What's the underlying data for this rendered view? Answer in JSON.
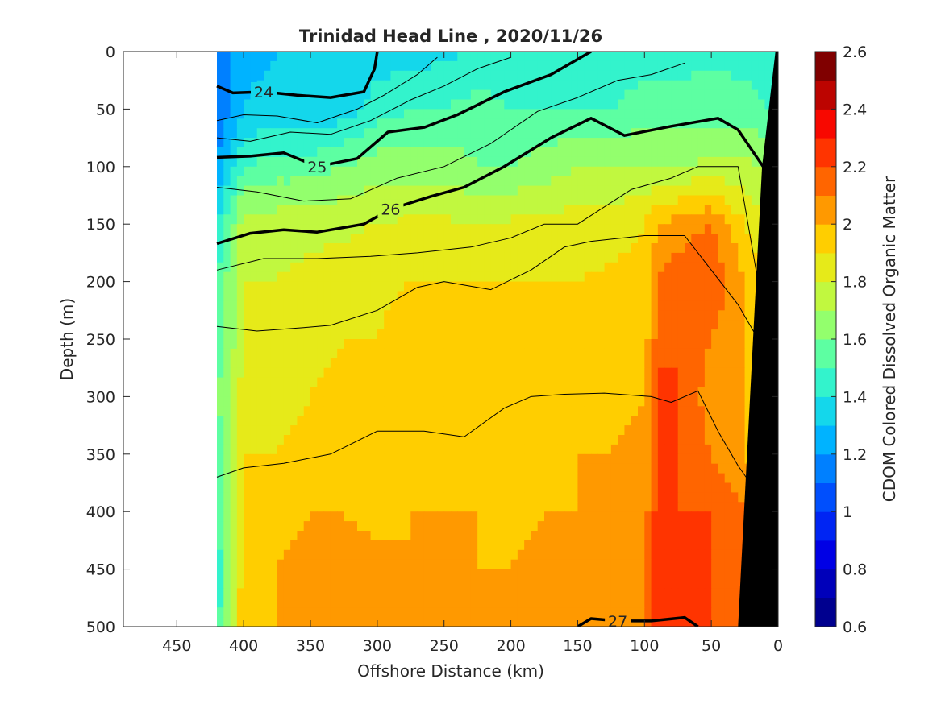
{
  "chart_data": {
    "type": "heatmap",
    "title": "Trinidad Head Line , 2020/11/26",
    "xlabel": "Offshore Distance (km)",
    "ylabel": "Depth (m)",
    "colorbar_label": "CDOM Colored Dissolved Organic Matter",
    "x_reversed": true,
    "xlim": [
      0,
      490
    ],
    "ylim": [
      0,
      500
    ],
    "y_reversed": true,
    "x_ticks": [
      450,
      400,
      350,
      300,
      250,
      200,
      150,
      100,
      50,
      0
    ],
    "y_ticks": [
      0,
      50,
      100,
      150,
      200,
      250,
      300,
      350,
      400,
      450,
      500
    ],
    "color_range": [
      0.6,
      2.6
    ],
    "colorbar_ticks": [
      2.6,
      2.4,
      2.2,
      2,
      1.8,
      1.6,
      1.4,
      1.2,
      1,
      0.8,
      0.6
    ],
    "colormap": [
      "#00008f",
      "#0000ea",
      "#0058ff",
      "#00c4ff",
      "#40ffbf",
      "#b0ff50",
      "#ffe000",
      "#ff7000",
      "#ff0800",
      "#800000"
    ],
    "data_extent_km": [
      0,
      420
    ],
    "grid_x_km": [
      420,
      400,
      375,
      350,
      325,
      300,
      275,
      250,
      225,
      200,
      175,
      150,
      125,
      100,
      90,
      75,
      50,
      25,
      5
    ],
    "grid_depth_m": [
      0,
      50,
      100,
      150,
      200,
      250,
      300,
      350,
      400,
      450,
      500
    ],
    "cdom": [
      [
        1.15,
        1.25,
        1.3,
        1.3,
        1.3,
        1.35,
        1.35,
        1.38,
        1.4,
        1.4,
        1.4,
        1.4,
        1.42,
        1.45,
        1.45,
        1.45,
        1.48,
        1.45,
        1.4
      ],
      [
        1.1,
        1.3,
        1.35,
        1.3,
        1.35,
        1.45,
        1.5,
        1.5,
        1.55,
        1.5,
        1.5,
        1.5,
        1.5,
        1.55,
        1.55,
        1.55,
        1.55,
        1.55,
        1.5
      ],
      [
        1.2,
        1.5,
        1.55,
        1.55,
        1.6,
        1.65,
        1.65,
        1.65,
        1.6,
        1.6,
        1.65,
        1.7,
        1.7,
        1.7,
        1.7,
        1.7,
        1.72,
        1.72,
        1.7
      ],
      [
        1.4,
        1.75,
        1.75,
        1.75,
        1.78,
        1.8,
        1.82,
        1.82,
        1.8,
        1.82,
        1.82,
        1.85,
        1.85,
        1.9,
        2.0,
        2.05,
        2.1,
        1.9,
        1.8
      ],
      [
        1.5,
        1.8,
        1.8,
        1.85,
        1.85,
        1.88,
        1.9,
        1.9,
        1.9,
        1.9,
        1.9,
        1.9,
        1.92,
        1.95,
        2.1,
        2.15,
        2.2,
        2.0,
        1.85
      ],
      [
        1.5,
        1.8,
        1.85,
        1.85,
        1.9,
        1.9,
        1.95,
        1.95,
        1.92,
        1.92,
        1.92,
        1.95,
        1.95,
        1.95,
        2.15,
        2.2,
        2.1,
        2.0,
        1.85
      ],
      [
        1.6,
        1.85,
        1.85,
        1.9,
        1.95,
        1.95,
        1.95,
        1.9,
        1.9,
        1.95,
        1.95,
        2.0,
        1.95,
        2.0,
        2.25,
        2.2,
        2.05,
        2.0,
        1.85
      ],
      [
        1.45,
        1.9,
        1.9,
        1.95,
        1.95,
        1.95,
        1.95,
        1.95,
        1.95,
        1.95,
        1.95,
        2.0,
        2.0,
        2.05,
        2.2,
        2.2,
        2.1,
        2.0,
        1.9
      ],
      [
        1.5,
        1.95,
        1.95,
        2.0,
        2.0,
        1.95,
        2.0,
        2.0,
        2.0,
        1.95,
        2.0,
        2.0,
        2.0,
        2.05,
        2.25,
        2.2,
        2.2,
        2.1,
        1.9
      ],
      [
        1.4,
        1.95,
        2.0,
        2.05,
        2.05,
        2.05,
        2.0,
        2.05,
        2.0,
        2.0,
        2.05,
        2.05,
        2.05,
        2.1,
        2.25,
        2.25,
        2.2,
        2.15,
        2.0
      ],
      [
        1.45,
        2.0,
        2.0,
        2.05,
        2.05,
        2.05,
        2.05,
        2.05,
        2.05,
        2.05,
        2.05,
        2.1,
        2.1,
        2.1,
        2.25,
        2.25,
        2.2,
        2.15,
        2.05
      ]
    ],
    "contours": [
      {
        "level": "24",
        "bold": true,
        "label": "24",
        "points": [
          [
            420,
            30
          ],
          [
            408,
            36
          ],
          [
            385,
            35
          ],
          [
            360,
            38
          ],
          [
            335,
            40
          ],
          [
            310,
            35
          ],
          [
            302,
            15
          ],
          [
            300,
            0
          ]
        ]
      },
      {
        "level": "25",
        "bold": true,
        "label": "25",
        "points": [
          [
            420,
            92
          ],
          [
            395,
            91
          ],
          [
            370,
            88
          ],
          [
            345,
            100
          ],
          [
            315,
            93
          ],
          [
            292,
            70
          ],
          [
            265,
            66
          ],
          [
            240,
            55
          ],
          [
            205,
            35
          ],
          [
            170,
            20
          ],
          [
            140,
            0
          ]
        ]
      },
      {
        "level": "26",
        "bold": true,
        "label": "26",
        "points": [
          [
            420,
            167
          ],
          [
            395,
            158
          ],
          [
            370,
            155
          ],
          [
            345,
            157
          ],
          [
            310,
            150
          ],
          [
            290,
            137
          ],
          [
            260,
            126
          ],
          [
            235,
            118
          ],
          [
            205,
            100
          ],
          [
            170,
            75
          ],
          [
            140,
            58
          ],
          [
            115,
            73
          ],
          [
            80,
            65
          ],
          [
            45,
            58
          ],
          [
            30,
            68
          ],
          [
            10,
            102
          ]
        ]
      },
      {
        "level": "thin",
        "bold": false,
        "points": [
          [
            420,
            190
          ],
          [
            385,
            180
          ],
          [
            345,
            180
          ],
          [
            305,
            178
          ],
          [
            270,
            175
          ],
          [
            230,
            170
          ],
          [
            200,
            162
          ],
          [
            175,
            150
          ],
          [
            150,
            150
          ],
          [
            110,
            120
          ],
          [
            80,
            110
          ],
          [
            60,
            100
          ],
          [
            30,
            100
          ],
          [
            15,
            200
          ],
          [
            5,
            300
          ]
        ]
      },
      {
        "level": "thin",
        "bold": false,
        "points": [
          [
            420,
            239
          ],
          [
            390,
            243
          ],
          [
            355,
            240
          ],
          [
            335,
            238
          ],
          [
            300,
            225
          ],
          [
            270,
            205
          ],
          [
            250,
            200
          ],
          [
            215,
            207
          ],
          [
            185,
            190
          ],
          [
            160,
            170
          ],
          [
            140,
            165
          ],
          [
            100,
            160
          ],
          [
            70,
            160
          ],
          [
            30,
            220
          ],
          [
            10,
            260
          ]
        ]
      },
      {
        "level": "thin",
        "bold": false,
        "points": [
          [
            420,
            370
          ],
          [
            400,
            362
          ],
          [
            370,
            358
          ],
          [
            335,
            350
          ],
          [
            300,
            330
          ],
          [
            265,
            330
          ],
          [
            235,
            335
          ],
          [
            205,
            310
          ],
          [
            185,
            300
          ],
          [
            160,
            298
          ],
          [
            130,
            297
          ],
          [
            95,
            300
          ],
          [
            80,
            305
          ],
          [
            60,
            295
          ],
          [
            45,
            330
          ],
          [
            30,
            360
          ],
          [
            18,
            380
          ]
        ]
      },
      {
        "level": "27",
        "bold": true,
        "label": "27",
        "points": [
          [
            150,
            500
          ],
          [
            140,
            493
          ],
          [
            120,
            495
          ],
          [
            95,
            495
          ],
          [
            70,
            492
          ],
          [
            60,
            500
          ]
        ]
      },
      {
        "level": "thin",
        "bold": false,
        "points": [
          [
            420,
            118
          ],
          [
            390,
            122
          ],
          [
            355,
            130
          ],
          [
            320,
            128
          ],
          [
            285,
            110
          ],
          [
            250,
            100
          ],
          [
            215,
            80
          ],
          [
            180,
            52
          ],
          [
            150,
            40
          ],
          [
            120,
            25
          ],
          [
            95,
            20
          ],
          [
            70,
            10
          ]
        ]
      },
      {
        "level": "thin",
        "bold": false,
        "points": [
          [
            420,
            75
          ],
          [
            395,
            78
          ],
          [
            365,
            70
          ],
          [
            335,
            72
          ],
          [
            305,
            60
          ],
          [
            275,
            42
          ],
          [
            250,
            30
          ],
          [
            225,
            15
          ],
          [
            200,
            5
          ]
        ]
      },
      {
        "level": "thin",
        "bold": false,
        "points": [
          [
            420,
            60
          ],
          [
            400,
            55
          ],
          [
            375,
            56
          ],
          [
            345,
            62
          ],
          [
            315,
            50
          ],
          [
            295,
            38
          ],
          [
            270,
            20
          ],
          [
            255,
            5
          ]
        ]
      }
    ]
  }
}
